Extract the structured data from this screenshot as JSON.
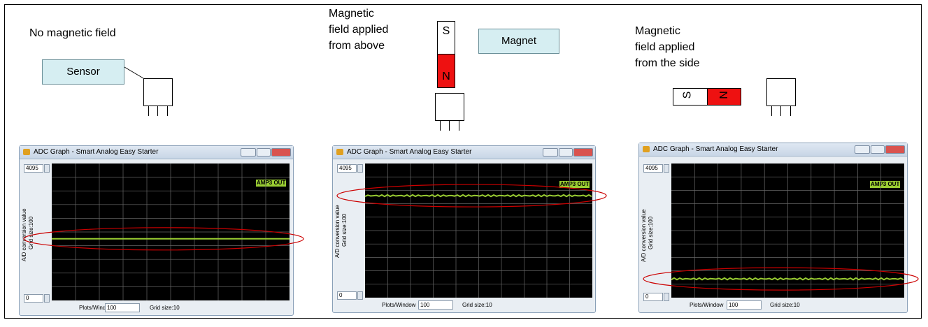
{
  "panels": [
    {
      "condition": "No magnetic field",
      "callout": "Sensor",
      "graph_trace": "low-middle"
    },
    {
      "condition": "Magnetic field applied from above",
      "callout": "Magnet",
      "graph_trace": "high"
    },
    {
      "condition": "Magnetic field applied from the side",
      "graph_trace": "low"
    }
  ],
  "labels": {
    "no_field": "No magnetic field",
    "above": [
      "Magnetic",
      "field applied",
      "from above"
    ],
    "side": [
      "Magnetic",
      "field applied",
      "from the side"
    ],
    "sensor": "Sensor",
    "magnet": "Magnet",
    "south": "S",
    "north": "N"
  },
  "window": {
    "title": "ADC Graph - Smart Analog Easy Starter",
    "ymax": "4095",
    "ymin": "0",
    "ylabel": "A/D conversion value",
    "grid_y": "Grid size:100",
    "plots_label": "Plots/Window",
    "plots_value": "100",
    "grid_x": "Grid size:10",
    "series": "AMP3 OUT"
  },
  "colors": {
    "trace": "#9acd32",
    "magnet_north": "#ee1111",
    "ellipse": "#cc0000",
    "callout_fill": "#d6eef2"
  }
}
